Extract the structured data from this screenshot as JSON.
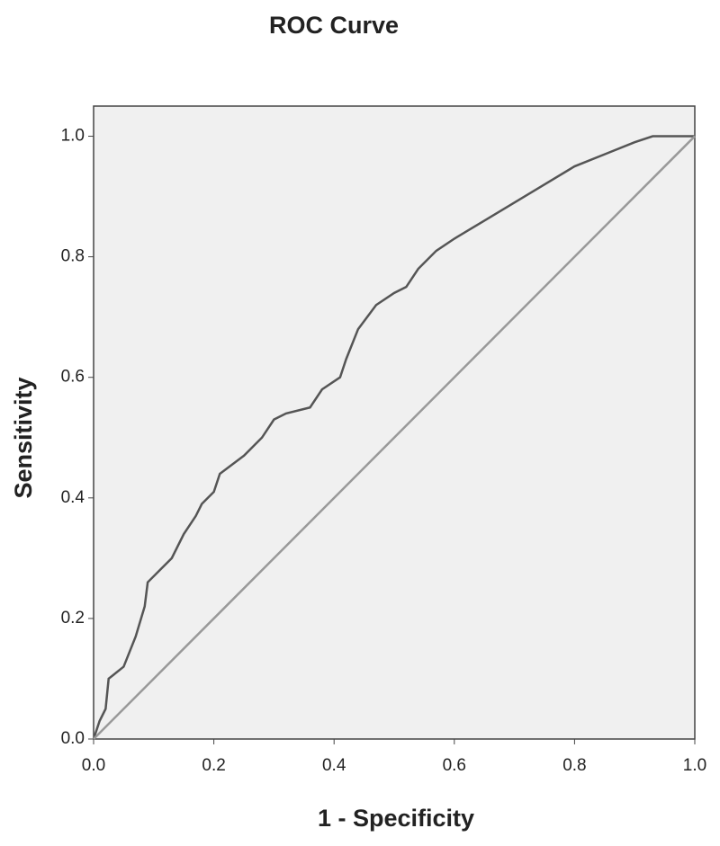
{
  "chart_data": {
    "type": "line",
    "title": "ROC Curve",
    "x_label": "1 - Specificity",
    "y_label": "Sensitivity",
    "xlim": [
      0,
      1
    ],
    "ylim": [
      0,
      1.05
    ],
    "xticks": [
      {
        "value": 0,
        "label": "0.0"
      },
      0.2,
      0.4,
      0.6,
      0.8,
      {
        "value": 1,
        "label": "1.0"
      }
    ],
    "yticks": [
      {
        "value": 0,
        "label": "0.0"
      },
      0.2,
      0.4,
      0.6,
      0.8,
      {
        "value": 1,
        "label": "1.0"
      }
    ],
    "grid": false,
    "series": [
      {
        "color": "#555555",
        "x": [
          0,
          0.01,
          0.02,
          0.025,
          0.05,
          0.07,
          0.085,
          0.09,
          0.11,
          0.13,
          0.15,
          0.17,
          0.18,
          0.2,
          0.21,
          0.25,
          0.28,
          0.3,
          0.32,
          0.36,
          0.38,
          0.41,
          0.42,
          0.44,
          0.47,
          0.5,
          0.52,
          0.54,
          0.57,
          0.6,
          0.65,
          0.7,
          0.75,
          0.8,
          0.85,
          0.9,
          0.93,
          1
        ],
        "values": [
          0,
          0.03,
          0.05,
          0.1,
          0.12,
          0.17,
          0.22,
          0.26,
          0.28,
          0.3,
          0.34,
          0.37,
          0.39,
          0.41,
          0.44,
          0.47,
          0.5,
          0.53,
          0.54,
          0.55,
          0.58,
          0.6,
          0.63,
          0.68,
          0.72,
          0.74,
          0.75,
          0.78,
          0.81,
          0.83,
          0.86,
          0.89,
          0.92,
          0.95,
          0.97,
          0.99,
          1,
          1
        ]
      },
      {
        "color": "#999999",
        "x": [
          0,
          1
        ],
        "values": [
          0,
          1
        ]
      }
    ]
  }
}
